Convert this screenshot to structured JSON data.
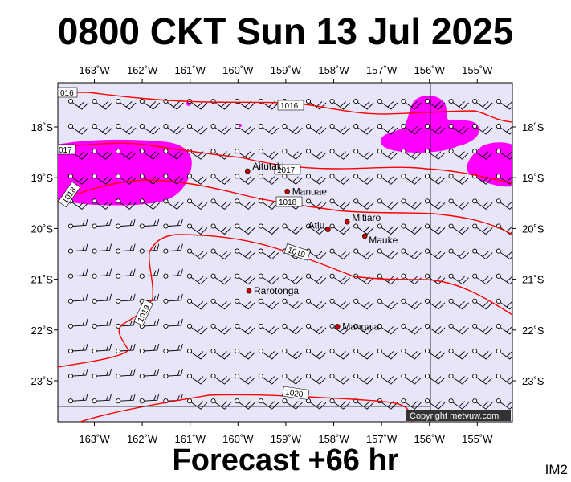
{
  "header": {
    "title": "0800 CKT Sun 13 Jul 2025"
  },
  "footer": {
    "forecast_label": "Forecast +66 hr",
    "image_code": "IM2"
  },
  "map": {
    "lon_labels": [
      "163˚W",
      "162˚W",
      "161˚W",
      "160˚W",
      "159˚W",
      "158˚W",
      "157˚W",
      "156˚W",
      "155˚W"
    ],
    "lat_labels": [
      "18˚S",
      "19˚S",
      "20˚S",
      "21˚S",
      "22˚S",
      "23˚S"
    ],
    "places": [
      {
        "name": "Aitutaki",
        "lon": -159.8,
        "lat": -18.87
      },
      {
        "name": "Manuae",
        "lon": -158.97,
        "lat": -19.27
      },
      {
        "name": "Mitiaro",
        "lon": -157.72,
        "lat": -19.87
      },
      {
        "name": "Atiu",
        "lon": -158.12,
        "lat": -20.02
      },
      {
        "name": "Mauke",
        "lon": -157.35,
        "lat": -20.15
      },
      {
        "name": "Rarotonga",
        "lon": -159.77,
        "lat": -21.23
      },
      {
        "name": "Mangaia",
        "lon": -157.92,
        "lat": -21.93
      }
    ],
    "isobar_labels": [
      "016",
      "1016",
      "017",
      "1017",
      "1018",
      "1018",
      "1019",
      "1019",
      "1020"
    ],
    "copyright": "Copyright metvuw.com",
    "colors": {
      "plot_bg": "#e6e6f8",
      "isobar": "#ff0000",
      "rain": "#ff00ff",
      "place_dot": "#cc0000"
    }
  }
}
